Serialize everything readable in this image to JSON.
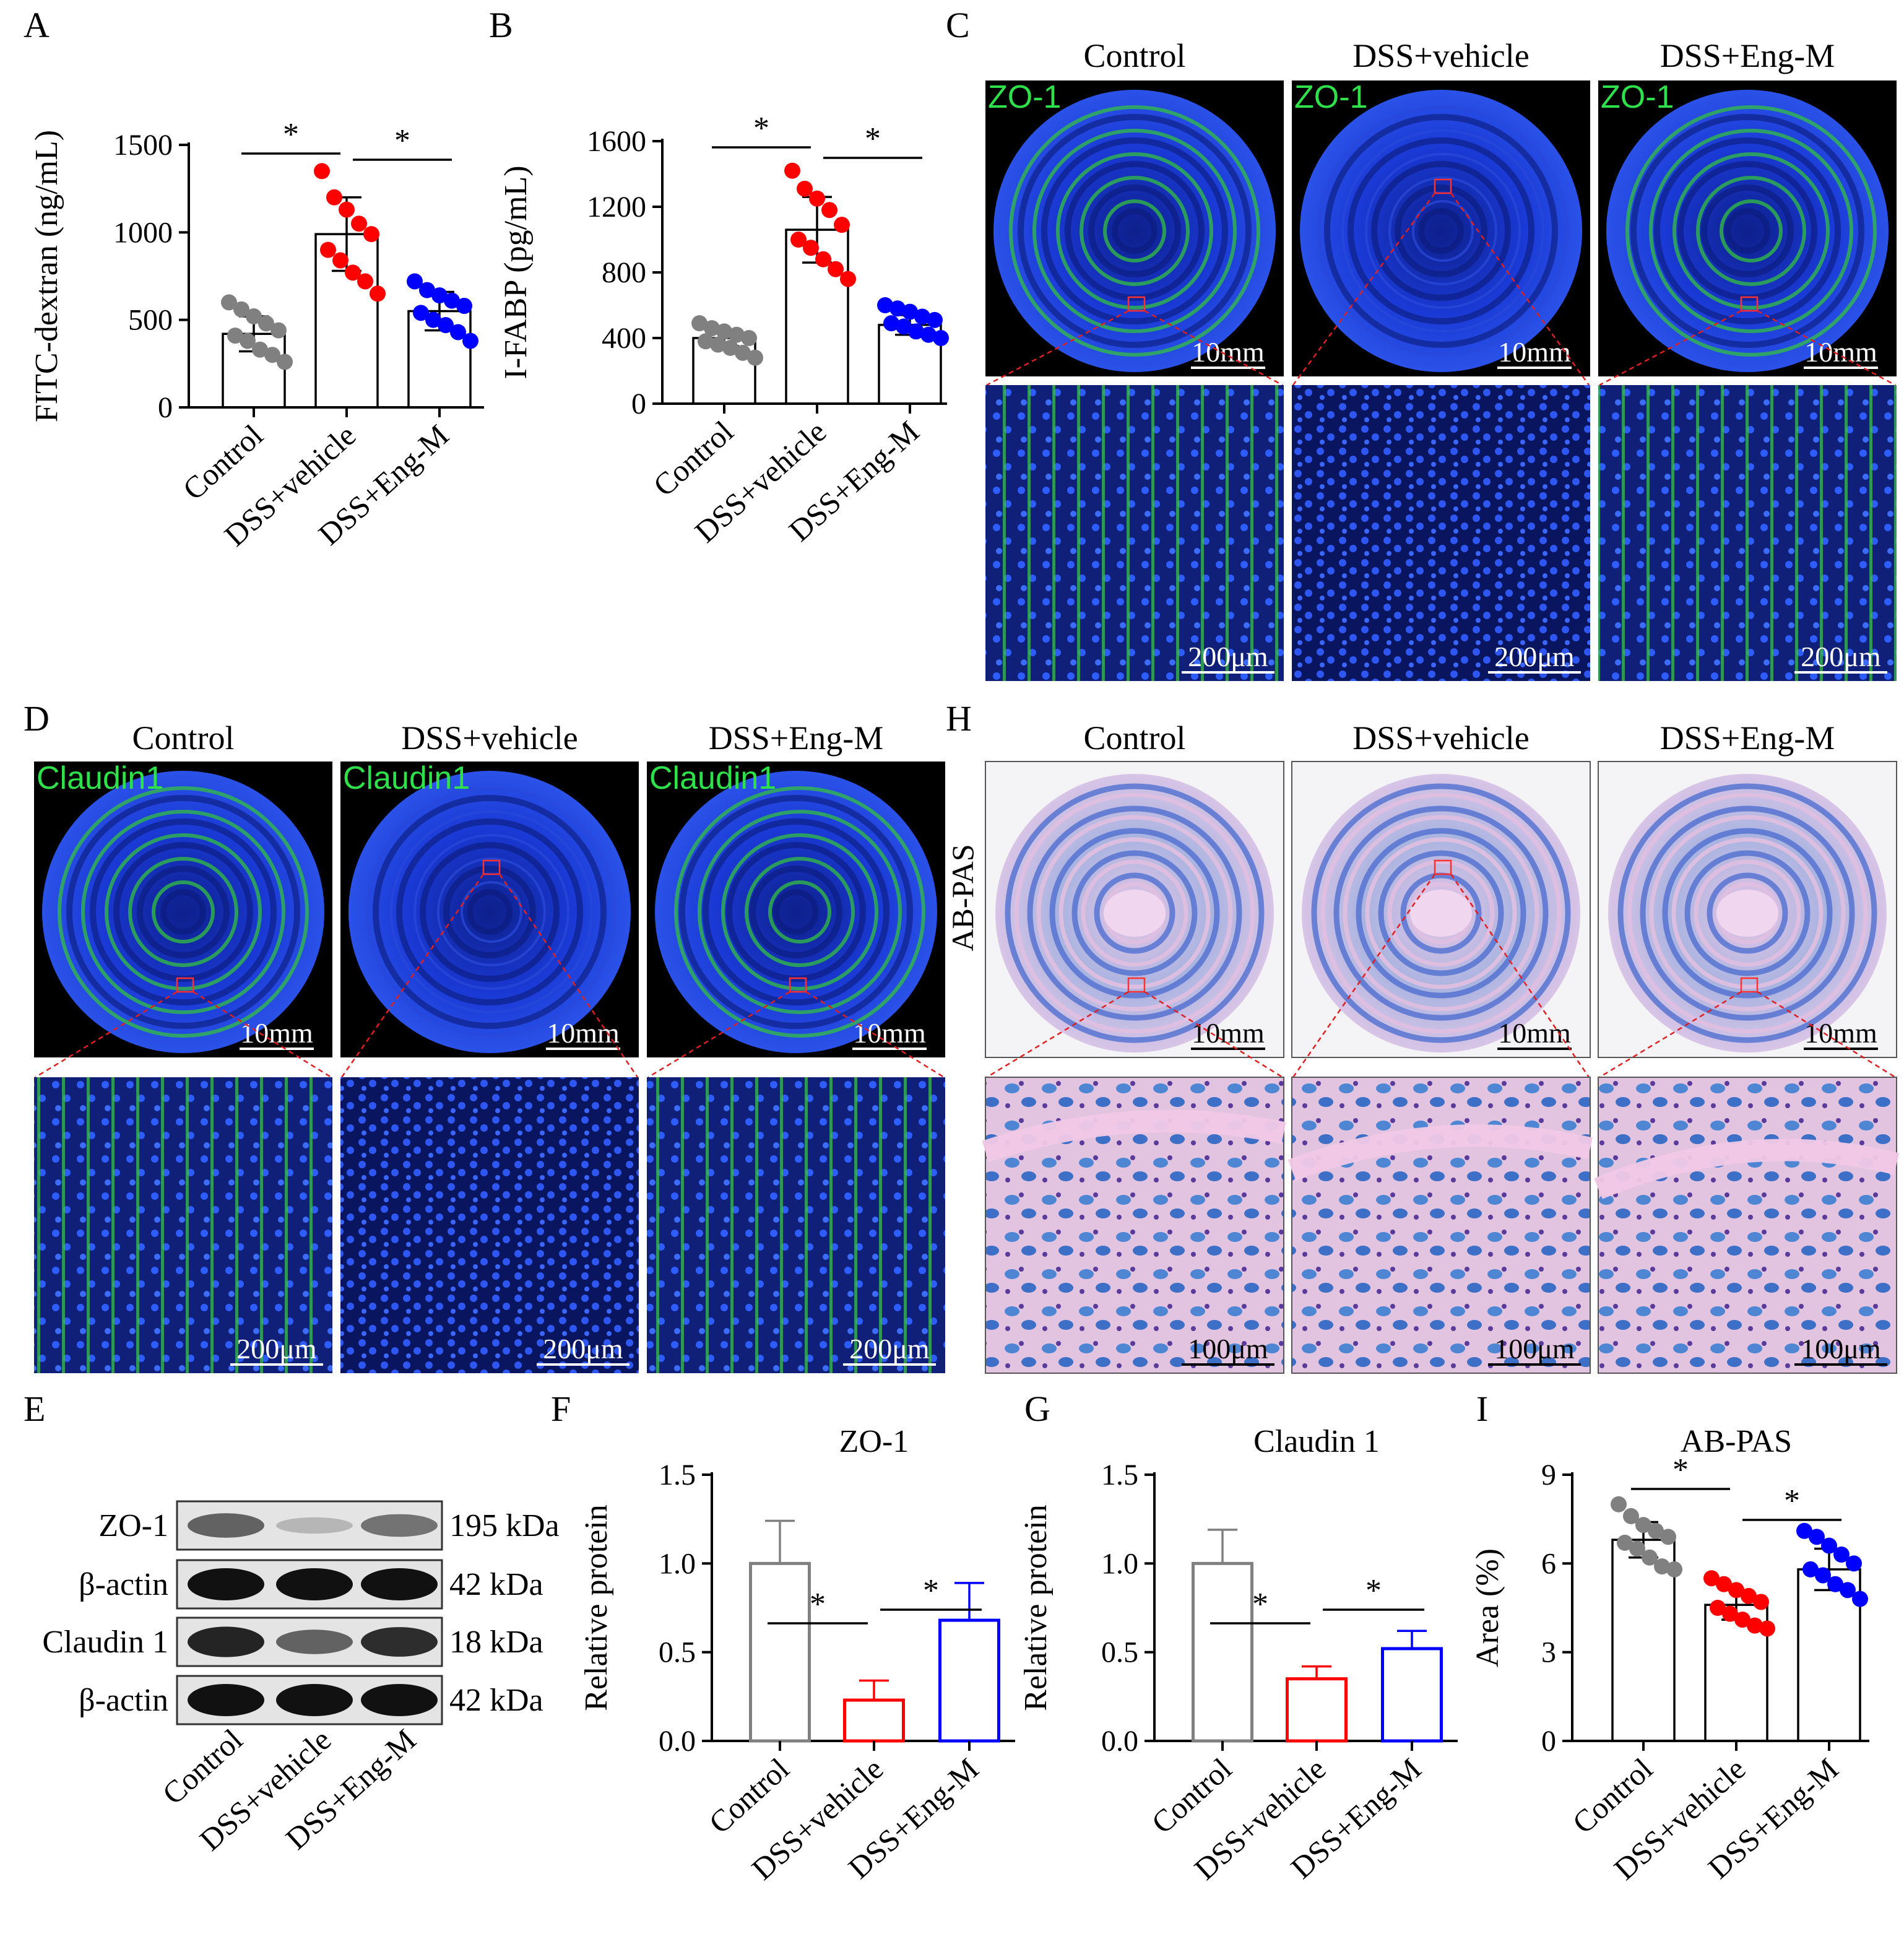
{
  "panels": {
    "A": "A",
    "B": "B",
    "C": "C",
    "D": "D",
    "E": "E",
    "F": "F",
    "G": "G",
    "H": "H",
    "I": "I"
  },
  "groups": [
    "Control",
    "DSS+vehicle",
    "DSS+Eng-M"
  ],
  "colors": {
    "control": "#808080",
    "vehicle": "#ff0000",
    "engm": "#0000ff",
    "if_blue": "#1a3ad6",
    "if_green": "#33c040",
    "pas_bg": "#c7cde8",
    "pas_pink": "#e6bedb"
  },
  "if_panels": {
    "C": {
      "stain": "ZO-1",
      "overview_scale": "10mm",
      "zoom_scale": "200μm"
    },
    "D": {
      "stain": "Claudin1",
      "overview_scale": "10mm",
      "zoom_scale": "200μm"
    },
    "H": {
      "stain": "AB-PAS",
      "overview_scale": "10mm",
      "zoom_scale": "100μm"
    }
  },
  "western": {
    "bands": [
      {
        "label": "ZO-1",
        "kda": "195 kDa"
      },
      {
        "label": "β-actin",
        "kda": "42 kDa"
      },
      {
        "label": "Claudin 1",
        "kda": "18 kDa"
      },
      {
        "label": "β-actin",
        "kda": "42 kDa"
      }
    ],
    "intensity": [
      [
        0.55,
        0.08,
        0.45
      ],
      [
        1.0,
        1.0,
        1.0
      ],
      [
        0.9,
        0.55,
        0.85
      ],
      [
        1.0,
        1.0,
        1.0
      ]
    ]
  },
  "chart_data": [
    {
      "id": "A",
      "type": "bar",
      "ylabel": "FITC-dextran (ng/mL)",
      "ylim": [
        0,
        1500
      ],
      "yticks": [
        0,
        500,
        1000,
        1500
      ],
      "categories": [
        "Control",
        "DSS+vehicle",
        "DSS+Eng-M"
      ],
      "values": [
        420,
        990,
        550
      ],
      "errors": [
        100,
        210,
        110
      ],
      "points": [
        [
          600,
          560,
          520,
          480,
          440,
          410,
          380,
          330,
          300,
          260
        ],
        [
          1350,
          1200,
          1130,
          1050,
          990,
          900,
          840,
          770,
          720,
          650
        ],
        [
          720,
          670,
          640,
          610,
          580,
          540,
          500,
          470,
          430,
          380
        ]
      ],
      "sig": [
        {
          "from": 0,
          "to": 1,
          "label": "*"
        },
        {
          "from": 1,
          "to": 2,
          "label": "*"
        }
      ]
    },
    {
      "id": "B",
      "type": "bar",
      "ylabel": "I-FABP (pg/mL)",
      "ylim": [
        0,
        1600
      ],
      "yticks": [
        0,
        400,
        800,
        1200,
        1600
      ],
      "categories": [
        "Control",
        "DSS+vehicle",
        "DSS+Eng-M"
      ],
      "values": [
        400,
        1060,
        480
      ],
      "errors": [
        50,
        200,
        60
      ],
      "points": [
        [
          490,
          460,
          440,
          420,
          400,
          380,
          360,
          340,
          310,
          280
        ],
        [
          1420,
          1310,
          1250,
          1180,
          1090,
          1000,
          950,
          880,
          820,
          760
        ],
        [
          600,
          580,
          560,
          530,
          510,
          490,
          470,
          440,
          420,
          400
        ]
      ],
      "sig": [
        {
          "from": 0,
          "to": 1,
          "label": "*"
        },
        {
          "from": 1,
          "to": 2,
          "label": "*"
        }
      ]
    },
    {
      "id": "F",
      "type": "bar",
      "title": "ZO-1",
      "ylabel": "Relative protein",
      "ylim": [
        0,
        1.5
      ],
      "yticks": [
        "0.0",
        "0.5",
        "1.0",
        "1.5"
      ],
      "categories": [
        "Control",
        "DSS+vehicle",
        "DSS+Eng-M"
      ],
      "values": [
        1.0,
        0.23,
        0.68
      ],
      "errors": [
        0.24,
        0.11,
        0.21
      ],
      "sig": [
        {
          "from": 0,
          "to": 1,
          "label": "*"
        },
        {
          "from": 1,
          "to": 2,
          "label": "*"
        }
      ]
    },
    {
      "id": "G",
      "type": "bar",
      "title": "Claudin 1",
      "ylabel": "Relative protein",
      "ylim": [
        0,
        1.5
      ],
      "yticks": [
        "0.0",
        "0.5",
        "1.0",
        "1.5"
      ],
      "categories": [
        "Control",
        "DSS+vehicle",
        "DSS+Eng-M"
      ],
      "values": [
        1.0,
        0.35,
        0.52
      ],
      "errors": [
        0.19,
        0.07,
        0.1
      ],
      "sig": [
        {
          "from": 0,
          "to": 1,
          "label": "*"
        },
        {
          "from": 1,
          "to": 2,
          "label": "*"
        }
      ]
    },
    {
      "id": "I",
      "type": "bar",
      "title": "AB-PAS",
      "ylabel": "Area (%)",
      "ylim": [
        0,
        9
      ],
      "yticks": [
        0,
        3,
        6,
        9
      ],
      "categories": [
        "Control",
        "DSS+vehicle",
        "DSS+Eng-M"
      ],
      "values": [
        6.8,
        4.6,
        5.8
      ],
      "errors": [
        0.6,
        0.5,
        0.7
      ],
      "points": [
        [
          8.0,
          7.6,
          7.3,
          7.1,
          6.9,
          6.7,
          6.5,
          6.2,
          5.9,
          5.8
        ],
        [
          5.5,
          5.3,
          5.1,
          4.9,
          4.7,
          4.5,
          4.3,
          4.1,
          3.9,
          3.8
        ],
        [
          7.1,
          6.9,
          6.6,
          6.3,
          6.0,
          5.8,
          5.6,
          5.3,
          5.1,
          4.8
        ]
      ],
      "sig": [
        {
          "from": 0,
          "to": 1,
          "label": "*"
        },
        {
          "from": 1,
          "to": 2,
          "label": "*"
        }
      ]
    }
  ]
}
